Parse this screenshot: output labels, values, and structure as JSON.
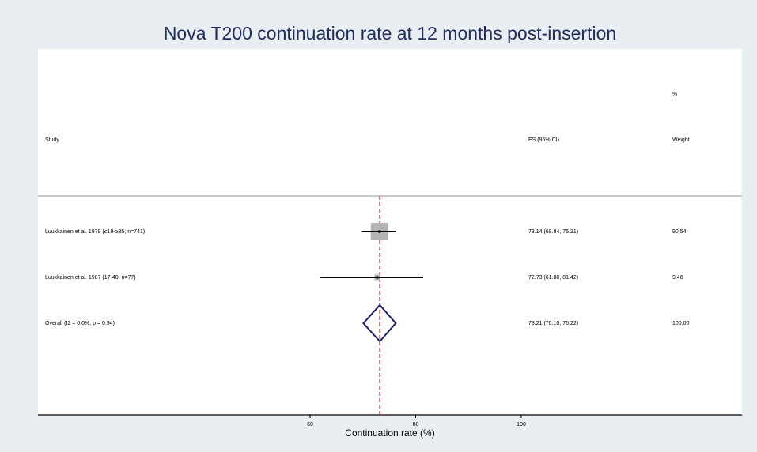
{
  "chart_data": {
    "type": "forest",
    "title": "Nova T200 continuation rate at 12 months post-insertion",
    "xlabel": "Continuation rate (%)",
    "xlim": [
      60,
      100
    ],
    "xticks": [
      60,
      80,
      100
    ],
    "headers": {
      "weight_top": "%",
      "study": "Study",
      "es": "ES (95% CI)",
      "weight": "Weight"
    },
    "box_color": "#b4b4b4",
    "ci_color": "#000000",
    "diamond_color": "#1a1a6e",
    "ref_line_color": "#a52a2a",
    "studies": [
      {
        "label": "Luukkainen et al. 1979 (≤19-≥35; n=741)",
        "es": 73.14,
        "lower": 69.84,
        "upper": 76.21,
        "es_label": "73.14 (69.84, 76.21)",
        "weight": 90.54
      },
      {
        "label": "Luukkainen et al. 1987 (17-40; n=77)",
        "es": 72.73,
        "lower": 61.88,
        "upper": 81.42,
        "es_label": "72.73 (61.88, 81.42)",
        "weight": 9.46
      }
    ],
    "overall": {
      "label": "Overall  (I2 = 0.0%, p = 0.94)",
      "es": 73.21,
      "lower": 70.1,
      "upper": 76.22,
      "es_label": "73.21 (70.10, 76.22)",
      "weight": 100,
      "weight_label": "100.00"
    }
  }
}
